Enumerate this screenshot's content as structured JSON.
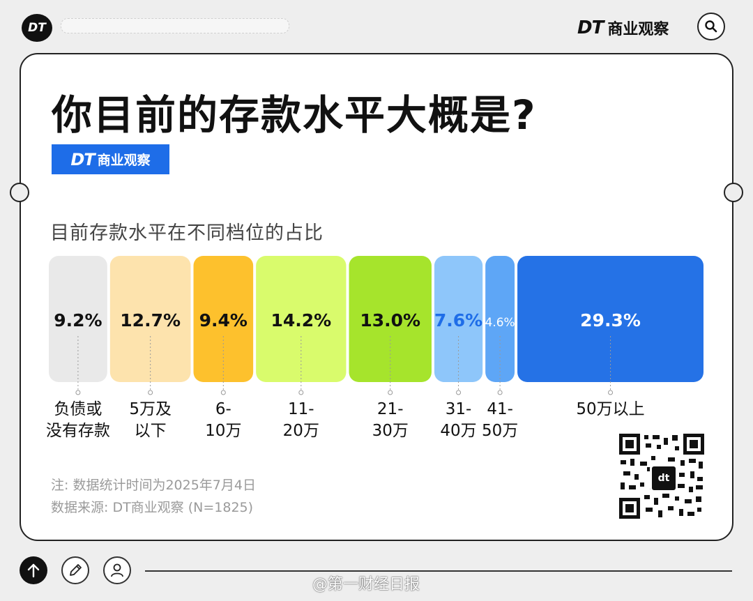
{
  "header": {
    "logo_text": "DT",
    "brand_dt": "DT",
    "brand_name": "商业观察"
  },
  "card": {
    "title": "你目前的存款水平大概是?",
    "badge_dt": "DT",
    "badge_name": "商业观察"
  },
  "chart_data": {
    "type": "bar",
    "title": "目前存款水平在不同档位的占比",
    "categories": [
      [
        "负债或",
        "没有存款"
      ],
      [
        "5万及",
        "以下"
      ],
      [
        "6-",
        "10万"
      ],
      [
        "11-",
        "20万"
      ],
      [
        "21-",
        "30万"
      ],
      [
        "31-",
        "40万"
      ],
      [
        "41-",
        "50万"
      ],
      [
        "50万以上"
      ]
    ],
    "values": [
      9.2,
      12.7,
      9.4,
      14.2,
      13.0,
      7.6,
      4.6,
      29.3
    ],
    "value_labels": [
      "9.2%",
      "12.7%",
      "9.4%",
      "14.2%",
      "13.0%",
      "7.6%",
      "4.6%",
      "29.3%"
    ],
    "colors": [
      "#e9e9e9",
      "#fde3ad",
      "#fdc12d",
      "#d9fb6c",
      "#a6e42c",
      "#8ec6fa",
      "#5ea6f6",
      "#2572e6"
    ],
    "label_colors": [
      "#111111",
      "#111111",
      "#111111",
      "#111111",
      "#111111",
      "#1e6de8",
      "#ffffff",
      "#ffffff"
    ],
    "unit": "%"
  },
  "notes": {
    "line1": "注: 数据统计时间为2025年7月4日",
    "line2": "数据来源: DT商业观察 (N=1825)"
  },
  "qr_logo": "dt",
  "watermark": "@第一财经日报"
}
